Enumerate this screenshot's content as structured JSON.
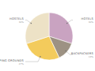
{
  "chart_data": {
    "type": "pie",
    "categories": [
      "HOTELS",
      "BACKPACKERS",
      "CAMPING GROUNDS",
      "HOSTELS"
    ],
    "values": [
      30,
      13,
      27,
      30
    ],
    "value_labels": [
      "30%",
      "13%",
      "27%",
      "30%"
    ],
    "colors": [
      "#c9a3c1",
      "#9d9283",
      "#f3cb5c",
      "#ede2c6"
    ],
    "data_labels": true
  }
}
